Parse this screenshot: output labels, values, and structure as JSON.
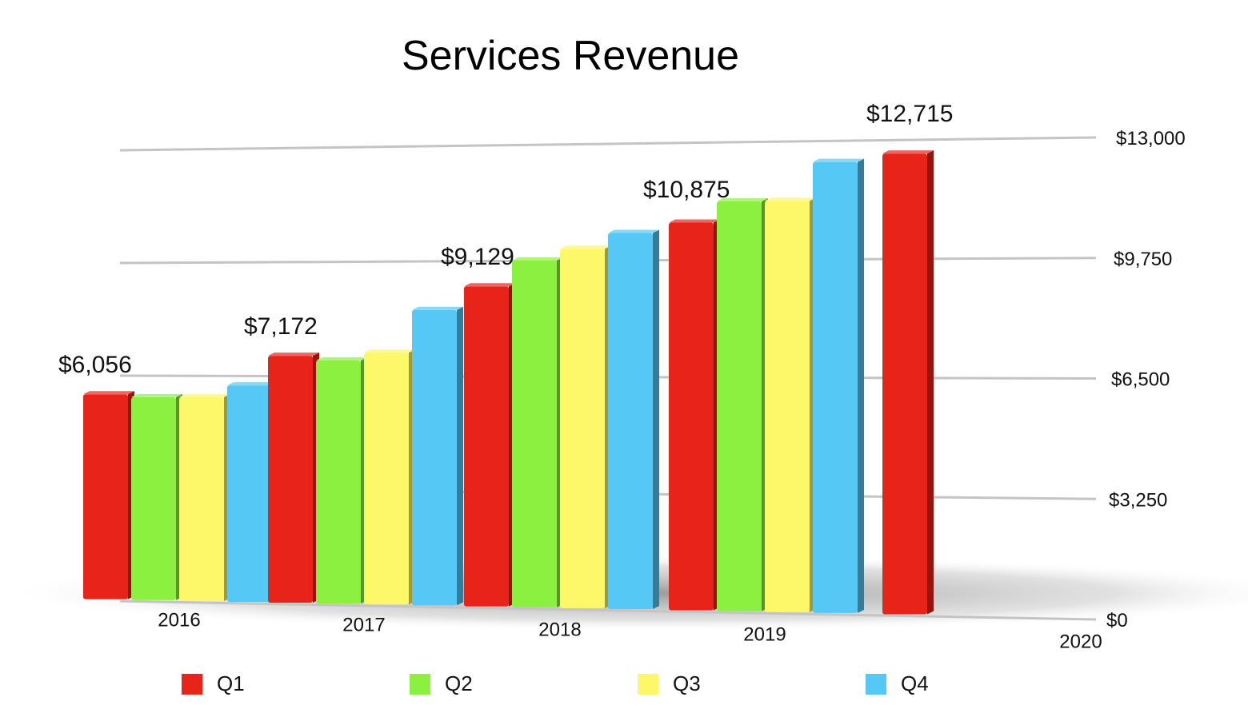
{
  "chart_data": {
    "type": "bar",
    "style": "3d-perspective",
    "title": "Services Revenue",
    "xlabel": "",
    "ylabel": "",
    "ylim": [
      0,
      13000
    ],
    "y_ticks": [
      0,
      3250,
      6500,
      9750,
      13000
    ],
    "y_tick_labels": [
      "$0",
      "$3,250",
      "$6,500",
      "$9,750",
      "$13,000"
    ],
    "y_axis_side": "right",
    "grid": true,
    "legend_position": "bottom",
    "categories": [
      "2016",
      "2017",
      "2018",
      "2019",
      "2020"
    ],
    "series": [
      {
        "name": "Q1",
        "color": "#e8241a",
        "values": [
          6056,
          7172,
          9129,
          10875,
          12715
        ]
      },
      {
        "name": "Q2",
        "color": "#8cf040",
        "values": [
          5976,
          7041,
          9850,
          11450,
          null
        ]
      },
      {
        "name": "Q3",
        "color": "#fdf76a",
        "values": [
          5985,
          7266,
          10170,
          11455,
          null
        ]
      },
      {
        "name": "Q4",
        "color": "#55c8f5",
        "values": [
          6325,
          8471,
          10600,
          12511,
          null
        ]
      }
    ],
    "data_labels": [
      {
        "series": "Q1",
        "category": "2016",
        "text": "$6,056"
      },
      {
        "series": "Q1",
        "category": "2017",
        "text": "$7,172"
      },
      {
        "series": "Q1",
        "category": "2018",
        "text": "$9,129"
      },
      {
        "series": "Q1",
        "category": "2019",
        "text": "$10,875"
      },
      {
        "series": "Q1",
        "category": "2020",
        "text": "$12,715"
      }
    ]
  }
}
